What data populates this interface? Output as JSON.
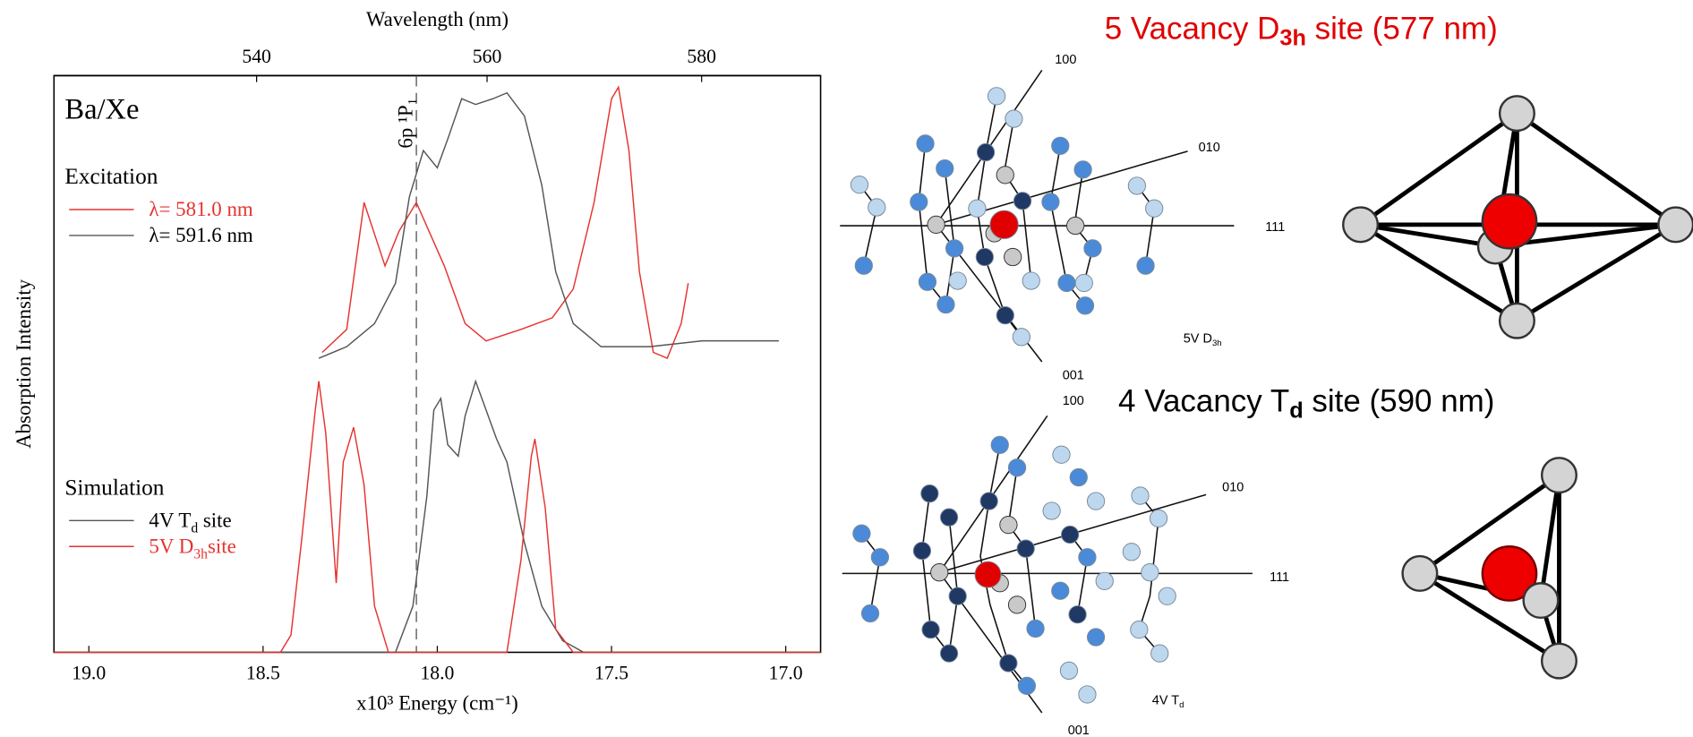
{
  "chart_data": {
    "type": "line",
    "sample_label": "Ba/Xe",
    "x_label": "x10³ Energy (cm⁻¹)",
    "x2_label": "Wavelength (nm)",
    "y_label": "Absorption Intensity",
    "xlim": [
      19.1,
      16.9
    ],
    "xticks": [
      {
        "value": 19.0,
        "label": "19.0"
      },
      {
        "value": 18.5,
        "label": "18.5"
      },
      {
        "value": 18.0,
        "label": "18.0"
      },
      {
        "value": 17.5,
        "label": "17.5"
      },
      {
        "value": 17.0,
        "label": "17.0"
      }
    ],
    "x2lim": [
      523.6,
      591.7
    ],
    "x2ticks": [
      540,
      560,
      580
    ],
    "ylim": [
      0,
      1
    ],
    "annotation": {
      "text": "6p ¹P₁",
      "x": 18.06
    },
    "groups": [
      {
        "title": "Excitation",
        "series": [
          {
            "name": "λ= 581.0 nm",
            "color": "#e5332f",
            "x": [
              18.33,
              18.26,
              18.21,
              18.15,
              18.11,
              18.06,
              17.98,
              17.92,
              17.86,
              17.76,
              17.67,
              17.61,
              17.55,
              17.5,
              17.48,
              17.45,
              17.42,
              17.38,
              17.34,
              17.3,
              17.28
            ],
            "values": [
              0.52,
              0.56,
              0.78,
              0.67,
              0.73,
              0.78,
              0.67,
              0.57,
              0.54,
              0.56,
              0.58,
              0.63,
              0.78,
              0.96,
              0.98,
              0.87,
              0.66,
              0.52,
              0.51,
              0.57,
              0.64
            ]
          },
          {
            "name": "λ= 591.6 nm",
            "color": "#555555",
            "x": [
              18.34,
              18.26,
              18.18,
              18.12,
              18.08,
              18.04,
              18.0,
              17.97,
              17.93,
              17.89,
              17.84,
              17.8,
              17.75,
              17.7,
              17.66,
              17.61,
              17.53,
              17.39,
              17.24,
              17.11,
              17.02
            ],
            "values": [
              0.51,
              0.53,
              0.57,
              0.64,
              0.79,
              0.87,
              0.84,
              0.89,
              0.96,
              0.95,
              0.96,
              0.97,
              0.93,
              0.81,
              0.66,
              0.57,
              0.53,
              0.53,
              0.54,
              0.54,
              0.54
            ]
          }
        ]
      },
      {
        "title": "Simulation",
        "series": [
          {
            "name": "4V T",
            "name_sub": "d",
            "name_end": " site",
            "color": "#555555",
            "x": [
              19.1,
              18.12,
              18.07,
              18.03,
              18.01,
              17.99,
              17.97,
              17.94,
              17.92,
              17.89,
              17.86,
              17.83,
              17.8,
              17.75,
              17.7,
              17.64,
              17.58,
              16.9
            ],
            "values": [
              0,
              0,
              0.08,
              0.27,
              0.42,
              0.44,
              0.36,
              0.34,
              0.41,
              0.47,
              0.42,
              0.37,
              0.33,
              0.19,
              0.08,
              0.02,
              0,
              0
            ]
          },
          {
            "name": "5V D",
            "name_sub": "3h",
            "name_end": "site",
            "color": "#e5332f",
            "x": [
              19.1,
              18.45,
              18.42,
              18.39,
              18.35,
              18.34,
              18.32,
              18.29,
              18.27,
              18.24,
              18.21,
              18.18,
              18.14,
              17.8,
              17.76,
              17.73,
              17.72,
              17.69,
              17.66,
              17.61,
              16.9
            ],
            "values": [
              0,
              0,
              0.03,
              0.19,
              0.42,
              0.47,
              0.38,
              0.12,
              0.33,
              0.39,
              0.29,
              0.08,
              0,
              0,
              0.16,
              0.34,
              0.37,
              0.25,
              0.04,
              0,
              0
            ]
          }
        ]
      }
    ]
  },
  "diagrams": [
    {
      "title": "5 Vacancy D",
      "title_sub": "3h",
      "title_end": " site (577 nm)",
      "axes": [
        "100",
        "010",
        "111",
        "001"
      ],
      "label": "5V D",
      "label_sub": "3h"
    },
    {
      "title": "4 Vacancy T",
      "title_sub": "d",
      "title_end": " site (590 nm)",
      "axes": [
        "100",
        "010",
        "111",
        "001"
      ],
      "label": "4V T",
      "label_sub": "d"
    }
  ]
}
